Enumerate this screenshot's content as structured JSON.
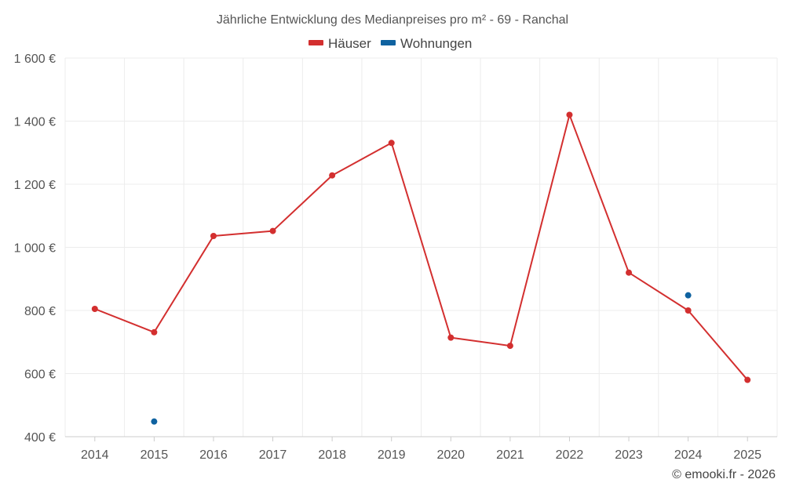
{
  "chart_data": {
    "type": "line",
    "title": "Jährliche Entwicklung des Medianpreises pro m² - 69 - Ranchal",
    "categories": [
      "2014",
      "2015",
      "2016",
      "2017",
      "2018",
      "2019",
      "2020",
      "2021",
      "2022",
      "2023",
      "2024",
      "2025"
    ],
    "y_ticks": [
      "400 €",
      "600 €",
      "800 €",
      "1 000 €",
      "1 200 €",
      "1 400 €",
      "1 600 €"
    ],
    "ylim": [
      400,
      1600
    ],
    "series": [
      {
        "name": "Häuser",
        "color": "#d32f2f",
        "values": [
          805,
          731,
          1036,
          1052,
          1228,
          1331,
          714,
          688,
          1420,
          920,
          800,
          580
        ]
      },
      {
        "name": "Wohnungen",
        "color": "#0f62a0",
        "values": [
          null,
          448,
          null,
          null,
          null,
          null,
          null,
          null,
          null,
          null,
          848,
          null
        ]
      }
    ],
    "legend_position": "top-center",
    "grid": true
  },
  "credit": "© emooki.fr - 2026"
}
